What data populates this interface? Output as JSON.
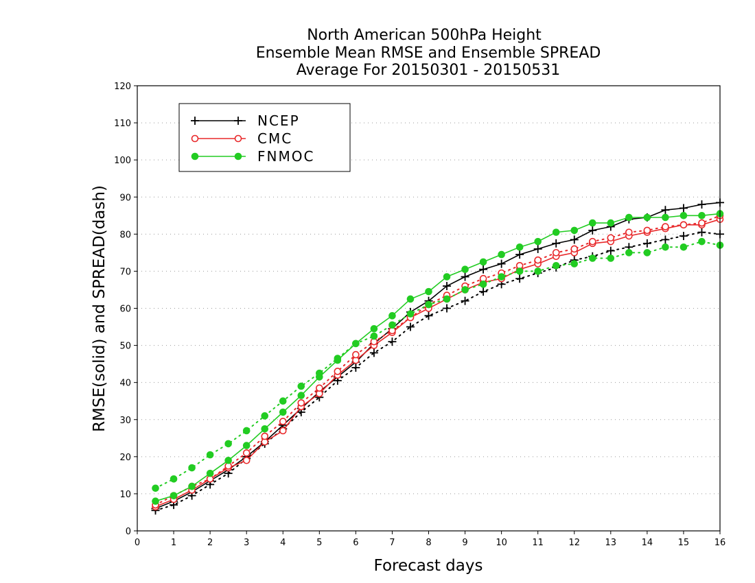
{
  "chart_data": {
    "type": "line",
    "title": [
      "North American 500hPa Height",
      "Ensemble Mean RMSE and Ensemble SPREAD",
      "Average For 20150301 - 20150531"
    ],
    "xlabel": "Forecast days",
    "ylabel": "RMSE(solid) and SPREAD(dash)",
    "xlim": [
      0,
      16
    ],
    "ylim": [
      0,
      120
    ],
    "xticks": [
      0,
      1,
      2,
      3,
      4,
      5,
      6,
      7,
      8,
      9,
      10,
      11,
      12,
      13,
      14,
      15,
      16
    ],
    "yticks": [
      0,
      10,
      20,
      30,
      40,
      50,
      60,
      70,
      80,
      90,
      100,
      110,
      120
    ],
    "grid": "horizontal-dotted",
    "legend_position": "top-left",
    "x": [
      0.5,
      1,
      1.5,
      2,
      2.5,
      3,
      3.5,
      4,
      4.5,
      5,
      5.5,
      6,
      6.5,
      7,
      7.5,
      8,
      8.5,
      9,
      9.5,
      10,
      10.5,
      11,
      11.5,
      12,
      12.5,
      13,
      13.5,
      14,
      14.5,
      15,
      15.5,
      16
    ],
    "series": [
      {
        "name": "NCEP",
        "kind": "RMSE",
        "color": "#000000",
        "marker": "plus",
        "values": [
          6.0,
          8.0,
          10.5,
          13.5,
          16.5,
          20.0,
          24.0,
          28.5,
          33.0,
          37.5,
          41.5,
          45.5,
          50.5,
          54.5,
          59.0,
          62.0,
          66.0,
          68.5,
          70.5,
          72.0,
          74.5,
          76.0,
          77.5,
          78.5,
          81.0,
          82.0,
          84.0,
          84.5,
          86.5,
          87.0,
          88.0,
          88.5
        ]
      },
      {
        "name": "NCEP",
        "kind": "SPREAD",
        "color": "#000000",
        "marker": "plus",
        "values": [
          5.5,
          7.0,
          9.5,
          12.5,
          15.5,
          19.5,
          23.5,
          27.5,
          32.0,
          36.0,
          40.5,
          44.0,
          48.0,
          51.0,
          55.0,
          58.0,
          60.0,
          62.0,
          64.5,
          66.5,
          68.0,
          69.5,
          71.0,
          73.0,
          74.0,
          75.5,
          76.5,
          77.5,
          78.5,
          79.5,
          80.5,
          80.0
        ]
      },
      {
        "name": "CMC",
        "kind": "RMSE",
        "color": "#e8282a",
        "marker": "open-circle",
        "values": [
          6.5,
          8.5,
          11.0,
          14.0,
          17.0,
          19.0,
          24.0,
          27.0,
          33.5,
          37.0,
          42.0,
          46.0,
          50.0,
          53.5,
          57.5,
          60.0,
          62.5,
          65.0,
          67.0,
          68.0,
          70.5,
          72.0,
          74.0,
          75.0,
          77.5,
          78.0,
          79.5,
          80.5,
          81.5,
          82.5,
          82.5,
          84.0
        ]
      },
      {
        "name": "CMC",
        "kind": "SPREAD",
        "color": "#e8282a",
        "marker": "open-circle",
        "values": [
          7.0,
          9.5,
          12.0,
          14.0,
          17.5,
          21.0,
          25.5,
          29.5,
          34.5,
          38.5,
          43.0,
          47.5,
          51.0,
          54.0,
          57.5,
          61.0,
          63.5,
          66.0,
          68.0,
          69.5,
          71.5,
          73.0,
          75.0,
          76.0,
          78.0,
          79.0,
          80.5,
          81.0,
          82.0,
          82.5,
          83.0,
          85.0
        ]
      },
      {
        "name": "FNMOC",
        "kind": "RMSE",
        "color": "#22cc22",
        "marker": "filled-circle",
        "values": [
          8.0,
          9.5,
          12.0,
          15.5,
          19.0,
          23.0,
          27.5,
          32.0,
          36.5,
          41.5,
          46.0,
          50.5,
          54.5,
          58.0,
          62.5,
          64.5,
          68.5,
          70.5,
          72.5,
          74.5,
          76.5,
          78.0,
          80.5,
          81.0,
          83.0,
          83.0,
          84.5,
          84.5,
          84.5,
          85.0,
          85.0,
          85.5
        ]
      },
      {
        "name": "FNMOC",
        "kind": "SPREAD",
        "color": "#22cc22",
        "marker": "filled-circle",
        "values": [
          11.5,
          14.0,
          17.0,
          20.5,
          23.5,
          27.0,
          31.0,
          35.0,
          39.0,
          42.5,
          46.5,
          50.5,
          52.5,
          55.5,
          58.5,
          61.0,
          62.5,
          65.0,
          66.5,
          68.5,
          70.0,
          70.0,
          71.5,
          72.0,
          73.5,
          73.5,
          75.0,
          75.0,
          76.5,
          76.5,
          78.0,
          77.0
        ]
      }
    ],
    "legend": [
      {
        "label": "NCEP",
        "color": "#000000",
        "marker": "plus"
      },
      {
        "label": "CMC",
        "color": "#e8282a",
        "marker": "open-circle"
      },
      {
        "label": "FNMOC",
        "color": "#22cc22",
        "marker": "filled-circle"
      }
    ]
  }
}
